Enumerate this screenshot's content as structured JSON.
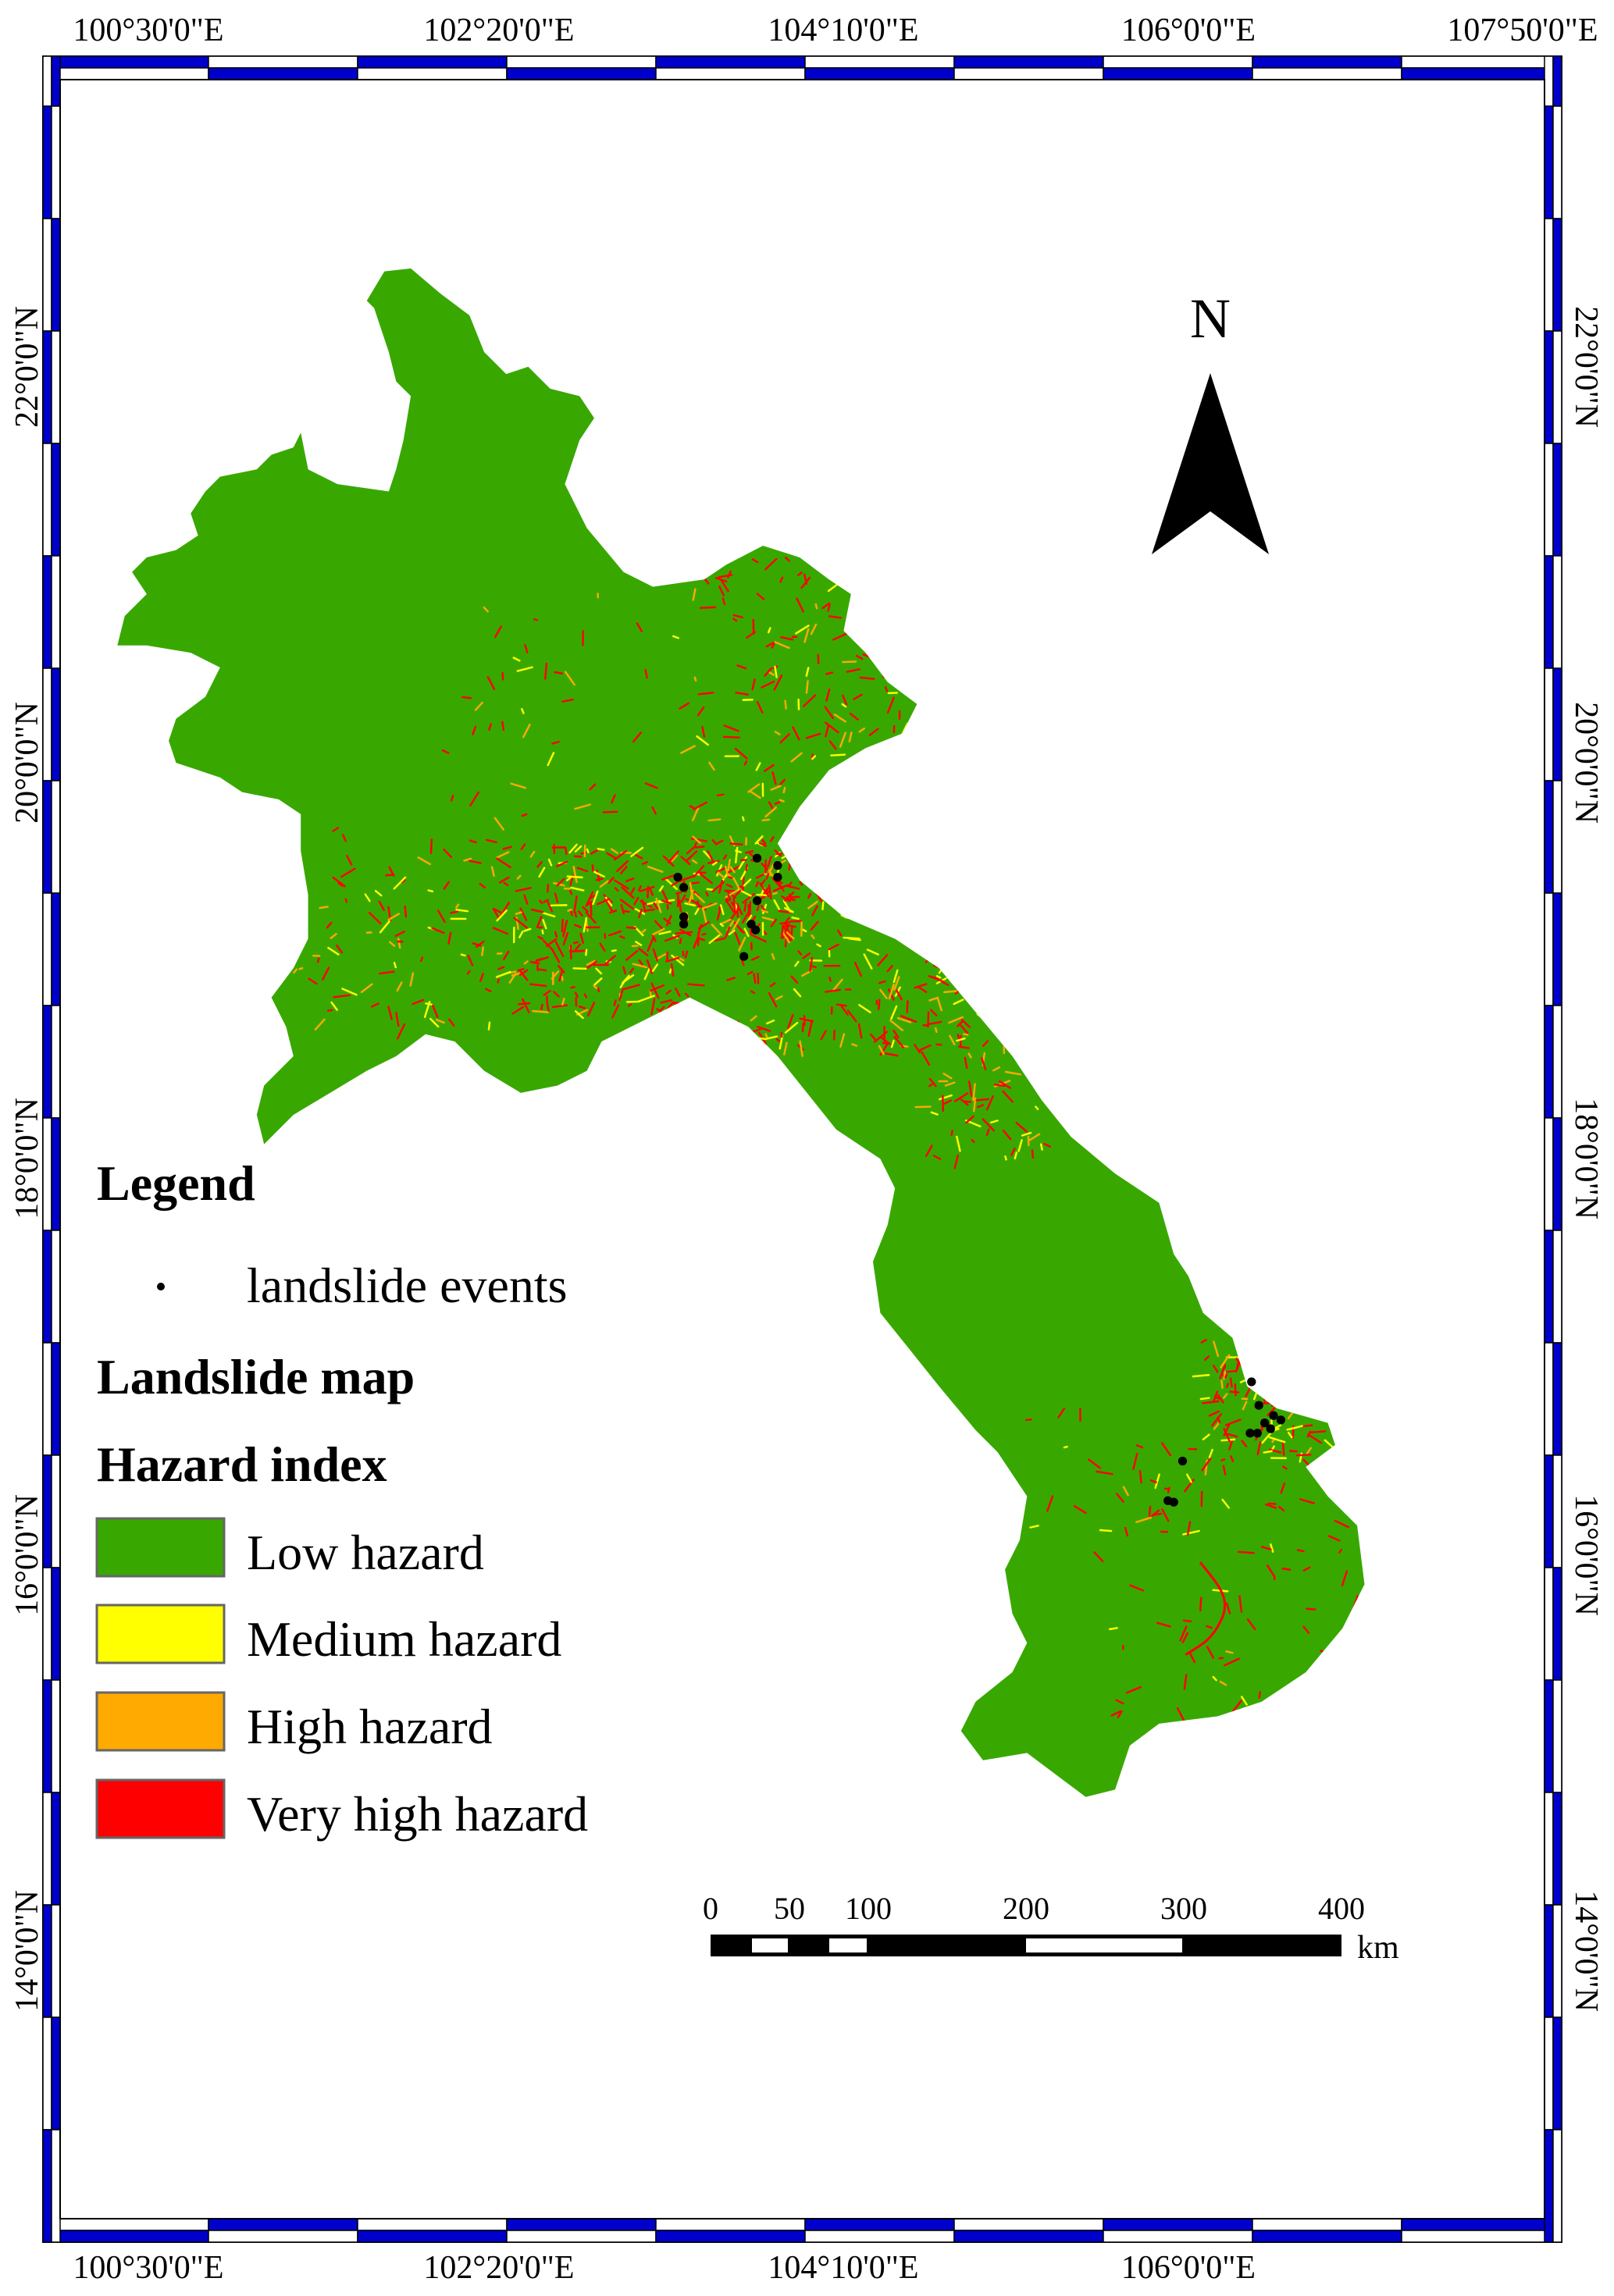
{
  "coordinates": {
    "longitude_labels": [
      "100°30'0\"E",
      "102°20'0\"E",
      "104°10'0\"E",
      "106°0'0\"E",
      "107°50'0\"E"
    ],
    "latitude_labels": [
      "22°0'0\"N",
      "20°0'0\"N",
      "18°0'0\"N",
      "16°0'0\"N",
      "14°0'0\"N"
    ]
  },
  "north_arrow": {
    "label": "N"
  },
  "legend": {
    "title": "Legend",
    "point_label": "landslide events",
    "map_title": "Landslide map",
    "index_title": "Hazard index",
    "classes": [
      {
        "label": "Low hazard",
        "color": "#38A800"
      },
      {
        "label": "Medium hazard",
        "color": "#FFFF00"
      },
      {
        "label": "High hazard",
        "color": "#FFAA00"
      },
      {
        "label": "Very high hazard",
        "color": "#FF0000"
      }
    ]
  },
  "scale_bar": {
    "ticks": [
      "0",
      "50",
      "100",
      "200",
      "300",
      "400"
    ],
    "unit": "km"
  },
  "colors": {
    "frame": "#0000CC",
    "land": "#38A800",
    "events": "#000000"
  }
}
